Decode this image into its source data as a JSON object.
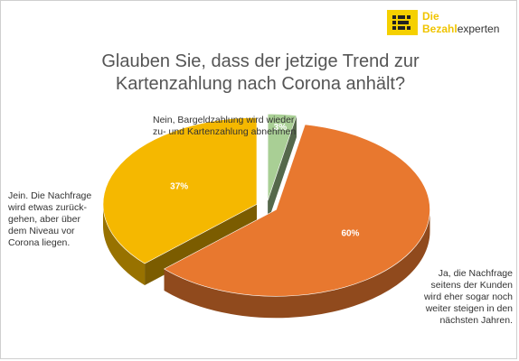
{
  "logo": {
    "line1": "Die",
    "line2_bold": "Bezahl",
    "line2_rest": "experten"
  },
  "title_line1": "Glauben Sie, dass der jetzige Trend zur",
  "title_line2": "Kartenzahlung nach Corona anhält?",
  "colors": {
    "ja": "#e8782f",
    "jein": "#f5b800",
    "nein": "#a9cf95",
    "brand": "#f5d000"
  },
  "chart_data": {
    "type": "pie",
    "style": "3d-exploded",
    "title": "Glauben Sie, dass der jetzige Trend zur Kartenzahlung nach Corona anhält?",
    "slices": [
      {
        "key": "nein",
        "value": 3,
        "data_label": "3%",
        "color": "#a9cf95",
        "label_lines": [
          "Nein, Bargeldzahlung wird wieder",
          "zu- und Kartenzahlung abnehmen"
        ]
      },
      {
        "key": "ja",
        "value": 60,
        "data_label": "60%",
        "color": "#e8782f",
        "label_lines": [
          "Ja, die Nachfrage",
          "seitens der Kunden",
          "wird eher sogar noch",
          "weiter steigen in den",
          "nächsten Jahren."
        ]
      },
      {
        "key": "jein",
        "value": 37,
        "data_label": "37%",
        "color": "#f5b800",
        "label_lines": [
          "Jein. Die Nachfrage",
          "wird etwas zurück-",
          "gehen, aber über",
          "dem Niveau vor",
          "Corona liegen."
        ]
      }
    ]
  }
}
